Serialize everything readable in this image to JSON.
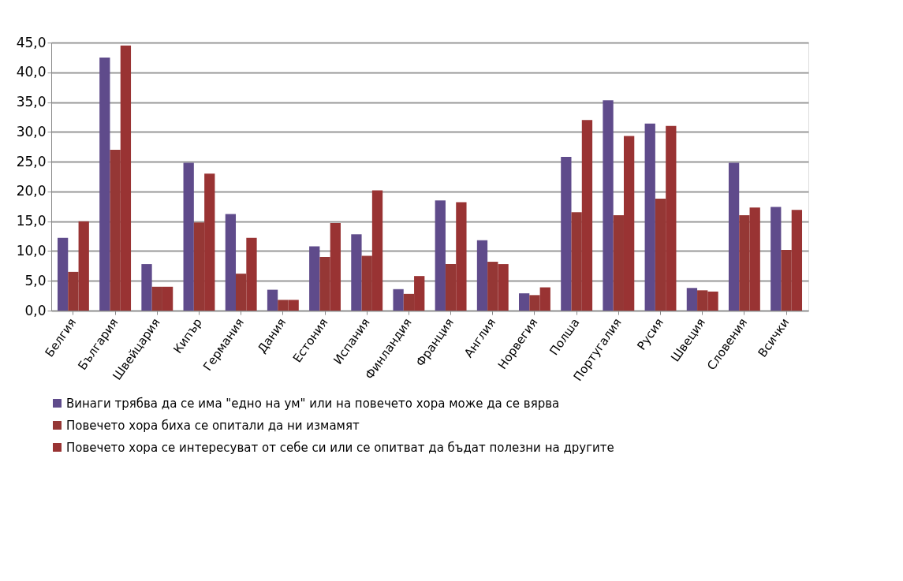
{
  "chart_data": {
    "type": "bar",
    "categories": [
      "Белгия",
      "България",
      "Швейцария",
      "Кипър",
      "Германия",
      "Дания",
      "Естония",
      "Испания",
      "Финландия",
      "Франция",
      "Англия",
      "Норвегия",
      "Полша",
      "Португалия",
      "Русия",
      "Швеция",
      "Словения",
      "Всички"
    ],
    "series": [
      {
        "name": "Винаги трябва да се има \"едно на ум\" или на повечето хора може да се вярва",
        "color": "#5f4b8b",
        "values": [
          12.2,
          42.5,
          7.8,
          24.8,
          16.2,
          3.5,
          10.8,
          12.8,
          3.6,
          18.5,
          11.8,
          2.9,
          25.8,
          35.3,
          31.4,
          3.8,
          24.8,
          17.4
        ]
      },
      {
        "name": "Повечето хора биха се опитали да ни измамят",
        "color": "#953735",
        "values": [
          6.5,
          27.0,
          4.0,
          14.8,
          6.2,
          1.8,
          9.0,
          9.2,
          2.8,
          7.8,
          8.2,
          2.6,
          16.5,
          16.0,
          18.8,
          3.4,
          16.0,
          10.2
        ]
      },
      {
        "name": "Повечето хора се интересуват от себе си или се опитват да бъдат полезни на другите",
        "color": "#993333",
        "values": [
          15.0,
          44.5,
          4.0,
          23.0,
          12.2,
          1.8,
          14.7,
          20.2,
          5.8,
          18.2,
          7.8,
          3.9,
          32.0,
          29.3,
          31.0,
          3.2,
          17.3,
          16.9
        ]
      }
    ],
    "ylim": [
      0,
      45
    ],
    "yticks": [
      {
        "value": 0,
        "label": "0,0"
      },
      {
        "value": 5,
        "label": "5,0"
      },
      {
        "value": 10,
        "label": "10,0"
      },
      {
        "value": 15,
        "label": "15,0"
      },
      {
        "value": 20,
        "label": "20,0"
      },
      {
        "value": 25,
        "label": "25,0"
      },
      {
        "value": 30,
        "label": "30,0"
      },
      {
        "value": 35,
        "label": "35,0"
      },
      {
        "value": 40,
        "label": "40,0"
      },
      {
        "value": 45,
        "label": "45,0"
      }
    ],
    "grid": "y",
    "legend": "bottom"
  }
}
